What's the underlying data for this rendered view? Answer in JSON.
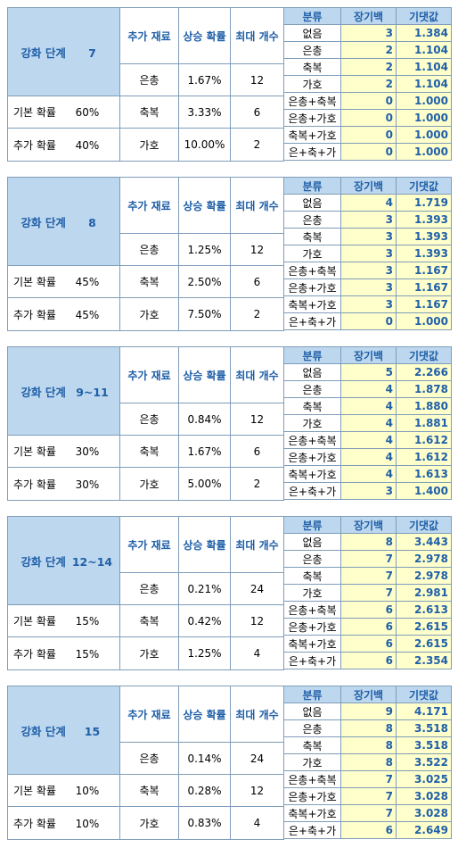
{
  "labels": {
    "stage": "강화 단계",
    "base_prob": "기본 확률",
    "extra_prob": "추가 확률",
    "material": "추가 재료",
    "increase": "상승 확률",
    "maxcount": "최대 개수",
    "category": "분류",
    "jangi": "장기백",
    "expected": "기댓값"
  },
  "blocks": [
    {
      "stage": "7",
      "base": "60%",
      "extra": "40%",
      "materials": [
        {
          "name": "은총",
          "prob": "1.67%",
          "max": "12"
        },
        {
          "name": "축복",
          "prob": "3.33%",
          "max": "6"
        },
        {
          "name": "가호",
          "prob": "10.00%",
          "max": "2"
        }
      ],
      "rows": [
        {
          "cat": "없음",
          "jangi": "3",
          "exp": "1.384"
        },
        {
          "cat": "은총",
          "jangi": "2",
          "exp": "1.104"
        },
        {
          "cat": "축복",
          "jangi": "2",
          "exp": "1.104"
        },
        {
          "cat": "가호",
          "jangi": "2",
          "exp": "1.104"
        },
        {
          "cat": "은총+축복",
          "jangi": "0",
          "exp": "1.000"
        },
        {
          "cat": "은총+가호",
          "jangi": "0",
          "exp": "1.000"
        },
        {
          "cat": "축복+가호",
          "jangi": "0",
          "exp": "1.000"
        },
        {
          "cat": "은+축+가",
          "jangi": "0",
          "exp": "1.000"
        }
      ]
    },
    {
      "stage": "8",
      "base": "45%",
      "extra": "45%",
      "materials": [
        {
          "name": "은총",
          "prob": "1.25%",
          "max": "12"
        },
        {
          "name": "축복",
          "prob": "2.50%",
          "max": "6"
        },
        {
          "name": "가호",
          "prob": "7.50%",
          "max": "2"
        }
      ],
      "rows": [
        {
          "cat": "없음",
          "jangi": "4",
          "exp": "1.719"
        },
        {
          "cat": "은총",
          "jangi": "3",
          "exp": "1.393"
        },
        {
          "cat": "축복",
          "jangi": "3",
          "exp": "1.393"
        },
        {
          "cat": "가호",
          "jangi": "3",
          "exp": "1.393"
        },
        {
          "cat": "은총+축복",
          "jangi": "3",
          "exp": "1.167"
        },
        {
          "cat": "은총+가호",
          "jangi": "3",
          "exp": "1.167"
        },
        {
          "cat": "축복+가호",
          "jangi": "3",
          "exp": "1.167"
        },
        {
          "cat": "은+축+가",
          "jangi": "0",
          "exp": "1.000"
        }
      ]
    },
    {
      "stage": "9~11",
      "base": "30%",
      "extra": "30%",
      "materials": [
        {
          "name": "은총",
          "prob": "0.84%",
          "max": "12"
        },
        {
          "name": "축복",
          "prob": "1.67%",
          "max": "6"
        },
        {
          "name": "가호",
          "prob": "5.00%",
          "max": "2"
        }
      ],
      "rows": [
        {
          "cat": "없음",
          "jangi": "5",
          "exp": "2.266"
        },
        {
          "cat": "은총",
          "jangi": "4",
          "exp": "1.878"
        },
        {
          "cat": "축복",
          "jangi": "4",
          "exp": "1.880"
        },
        {
          "cat": "가호",
          "jangi": "4",
          "exp": "1.881"
        },
        {
          "cat": "은총+축복",
          "jangi": "4",
          "exp": "1.612"
        },
        {
          "cat": "은총+가호",
          "jangi": "4",
          "exp": "1.612"
        },
        {
          "cat": "축복+가호",
          "jangi": "4",
          "exp": "1.613"
        },
        {
          "cat": "은+축+가",
          "jangi": "3",
          "exp": "1.400"
        }
      ]
    },
    {
      "stage": "12~14",
      "base": "15%",
      "extra": "15%",
      "materials": [
        {
          "name": "은총",
          "prob": "0.21%",
          "max": "24"
        },
        {
          "name": "축복",
          "prob": "0.42%",
          "max": "12"
        },
        {
          "name": "가호",
          "prob": "1.25%",
          "max": "4"
        }
      ],
      "rows": [
        {
          "cat": "없음",
          "jangi": "8",
          "exp": "3.443"
        },
        {
          "cat": "은총",
          "jangi": "7",
          "exp": "2.978"
        },
        {
          "cat": "축복",
          "jangi": "7",
          "exp": "2.978"
        },
        {
          "cat": "가호",
          "jangi": "7",
          "exp": "2.981"
        },
        {
          "cat": "은총+축복",
          "jangi": "6",
          "exp": "2.613"
        },
        {
          "cat": "은총+가호",
          "jangi": "6",
          "exp": "2.615"
        },
        {
          "cat": "축복+가호",
          "jangi": "6",
          "exp": "2.615"
        },
        {
          "cat": "은+축+가",
          "jangi": "6",
          "exp": "2.354"
        }
      ]
    },
    {
      "stage": "15",
      "base": "10%",
      "extra": "10%",
      "materials": [
        {
          "name": "은총",
          "prob": "0.14%",
          "max": "24"
        },
        {
          "name": "축복",
          "prob": "0.28%",
          "max": "12"
        },
        {
          "name": "가호",
          "prob": "0.83%",
          "max": "4"
        }
      ],
      "rows": [
        {
          "cat": "없음",
          "jangi": "9",
          "exp": "4.171"
        },
        {
          "cat": "은총",
          "jangi": "8",
          "exp": "3.518"
        },
        {
          "cat": "축복",
          "jangi": "8",
          "exp": "3.518"
        },
        {
          "cat": "가호",
          "jangi": "8",
          "exp": "3.522"
        },
        {
          "cat": "은총+축복",
          "jangi": "7",
          "exp": "3.025"
        },
        {
          "cat": "은총+가호",
          "jangi": "7",
          "exp": "3.028"
        },
        {
          "cat": "축복+가호",
          "jangi": "7",
          "exp": "3.028"
        },
        {
          "cat": "은+축+가",
          "jangi": "6",
          "exp": "2.649"
        }
      ]
    }
  ]
}
